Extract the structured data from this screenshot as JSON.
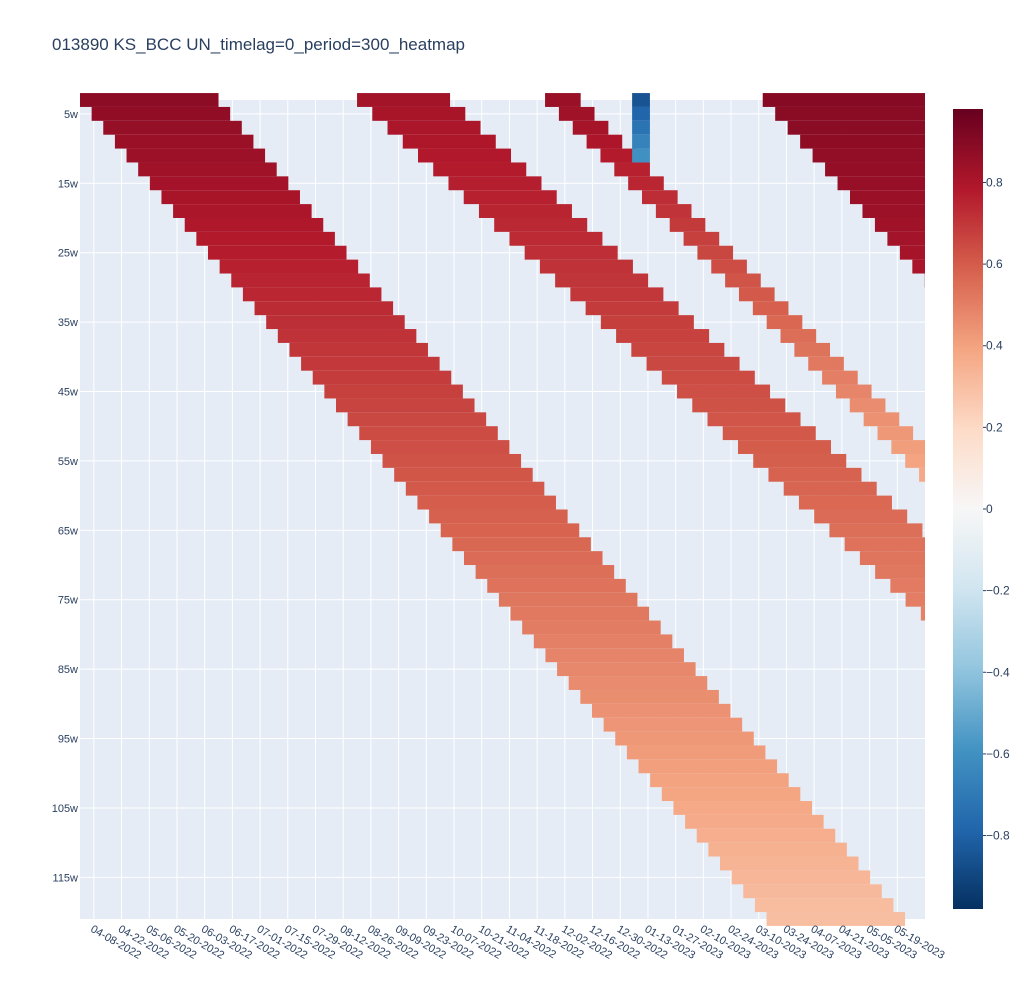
{
  "chart_data": {
    "type": "heatmap",
    "title": "013890 KS_BCC UN_timelag=0_period=300_heatmap",
    "xlabel": "",
    "ylabel": "",
    "x_start": "2022-04-01",
    "x_end": "2023-06-02",
    "y_range": [
      3,
      121
    ],
    "x_ticks": [
      "04-08-2022",
      "04-22-2022",
      "05-06-2022",
      "05-20-2022",
      "06-03-2022",
      "06-17-2022",
      "07-01-2022",
      "07-15-2022",
      "07-29-2022",
      "08-12-2022",
      "08-26-2022",
      "09-09-2022",
      "09-23-2022",
      "10-07-2022",
      "10-21-2022",
      "11-04-2022",
      "11-18-2022",
      "12-02-2022",
      "12-16-2022",
      "12-30-2022",
      "01-13-2023",
      "01-27-2023",
      "02-10-2023",
      "02-24-2023",
      "03-10-2023",
      "03-24-2023",
      "04-07-2023",
      "04-21-2023",
      "05-05-2023",
      "05-19-2023"
    ],
    "y_ticks": [
      "5w",
      "15w",
      "25w",
      "35w",
      "45w",
      "55w",
      "65w",
      "75w",
      "85w",
      "95w",
      "105w",
      "115w"
    ],
    "y_tick_values": [
      5,
      15,
      25,
      35,
      45,
      55,
      65,
      75,
      85,
      95,
      105,
      115
    ],
    "colorbar": {
      "range": [
        -0.98,
        0.98
      ],
      "ticks": [
        0.8,
        0.6,
        0.4,
        0.2,
        0,
        -0.2,
        -0.4,
        -0.6,
        -0.8
      ],
      "tick_labels": [
        "0.8",
        "0.6",
        "0.4",
        "0.2",
        "0",
        "−0.2",
        "−0.4",
        "−0.6",
        "−0.8"
      ],
      "colorscale": "RdBu_r"
    },
    "background_color": "#e5ecf6",
    "bands": [
      {
        "name": "band-1",
        "start": "2022-04-01",
        "end": "2022-06-10",
        "w_lo": 3,
        "w_hi": 121,
        "v_short": 0.88,
        "v_long": 0.3,
        "slope": 0.42
      },
      {
        "name": "band-2",
        "start": "2022-08-19",
        "end": "2022-10-05",
        "w_lo": 3,
        "w_hi": 121,
        "v_short": 0.82,
        "v_long": 0.3,
        "slope": 0.55
      },
      {
        "name": "band-3",
        "start": "2022-11-22",
        "end": "2022-12-10",
        "w_lo": 3,
        "w_hi": 60,
        "v_short": 0.85,
        "v_long": 0.35,
        "slope": 0.5
      },
      {
        "name": "band-4",
        "start": "2023-03-12",
        "end": "2023-06-02",
        "w_lo": 3,
        "w_hi": 121,
        "v_short": 0.9,
        "v_long": 0.45,
        "slope": 0.45
      },
      {
        "name": "negative-patch",
        "start": "2023-01-05",
        "end": "2023-01-14",
        "w_lo": 3,
        "w_hi": 11,
        "v_short": -0.85,
        "v_long": -0.6,
        "slope": 0
      }
    ]
  }
}
